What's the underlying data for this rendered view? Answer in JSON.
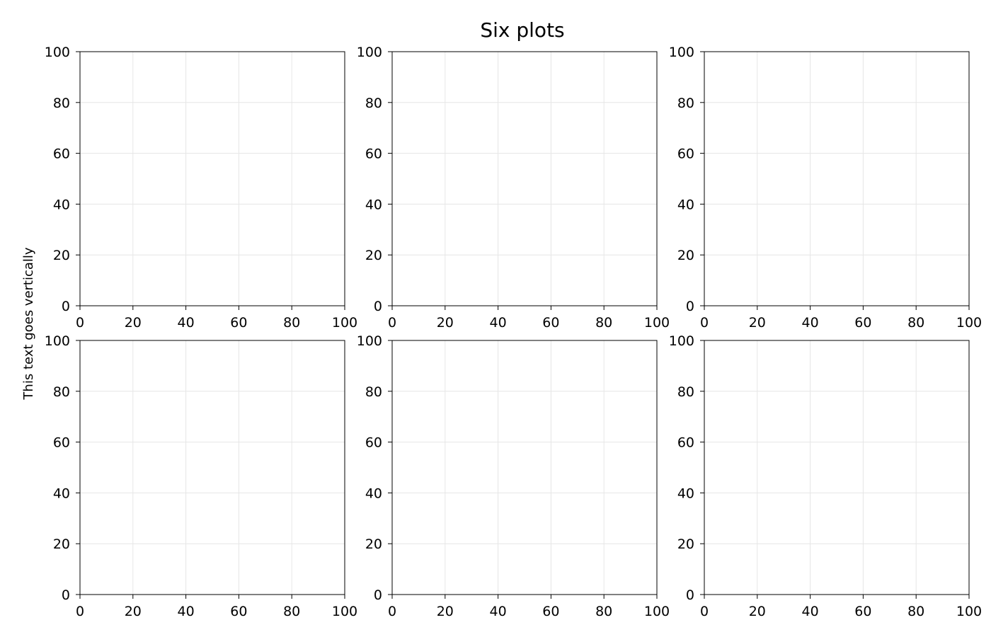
{
  "figure": {
    "title": "Six plots",
    "ylabel": "This text goes vertically"
  },
  "colors": {
    "axis": "#000000",
    "grid": "#e6e6e6",
    "background": "#ffffff"
  },
  "chart_data": [
    {
      "type": "scatter",
      "x": [],
      "y": [],
      "xlim": [
        0,
        100
      ],
      "ylim": [
        0,
        100
      ],
      "xticks": [
        "0",
        "20",
        "40",
        "60",
        "80",
        "100"
      ],
      "yticks": [
        "0",
        "20",
        "40",
        "60",
        "80",
        "100"
      ],
      "grid": true
    },
    {
      "type": "scatter",
      "x": [],
      "y": [],
      "xlim": [
        0,
        100
      ],
      "ylim": [
        0,
        100
      ],
      "xticks": [
        "0",
        "20",
        "40",
        "60",
        "80",
        "100"
      ],
      "yticks": [
        "0",
        "20",
        "40",
        "60",
        "80",
        "100"
      ],
      "grid": true
    },
    {
      "type": "scatter",
      "x": [],
      "y": [],
      "xlim": [
        0,
        100
      ],
      "ylim": [
        0,
        100
      ],
      "xticks": [
        "0",
        "20",
        "40",
        "60",
        "80",
        "100"
      ],
      "yticks": [
        "0",
        "20",
        "40",
        "60",
        "80",
        "100"
      ],
      "grid": true
    },
    {
      "type": "scatter",
      "x": [],
      "y": [],
      "xlim": [
        0,
        100
      ],
      "ylim": [
        0,
        100
      ],
      "xticks": [
        "0",
        "20",
        "40",
        "60",
        "80",
        "100"
      ],
      "yticks": [
        "0",
        "20",
        "40",
        "60",
        "80",
        "100"
      ],
      "grid": true
    },
    {
      "type": "scatter",
      "x": [],
      "y": [],
      "xlim": [
        0,
        100
      ],
      "ylim": [
        0,
        100
      ],
      "xticks": [
        "0",
        "20",
        "40",
        "60",
        "80",
        "100"
      ],
      "yticks": [
        "0",
        "20",
        "40",
        "60",
        "80",
        "100"
      ],
      "grid": true
    },
    {
      "type": "scatter",
      "x": [],
      "y": [],
      "xlim": [
        0,
        100
      ],
      "ylim": [
        0,
        100
      ],
      "xticks": [
        "0",
        "20",
        "40",
        "60",
        "80",
        "100"
      ],
      "yticks": [
        "0",
        "20",
        "40",
        "60",
        "80",
        "100"
      ],
      "grid": true
    }
  ]
}
